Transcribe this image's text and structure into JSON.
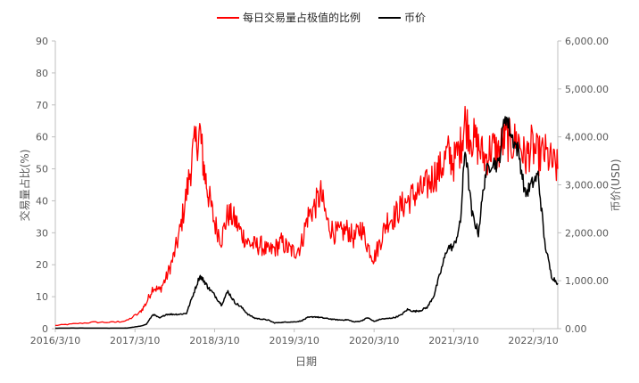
{
  "chart_data": {
    "type": "line",
    "title": "",
    "xlabel": "日期",
    "ylabel_left": "交易量占比(%)",
    "ylabel_right": "币价(USD)",
    "x_range": [
      "2016/3/10",
      "2022/6/30"
    ],
    "x_ticks": [
      "2016/3/10",
      "2017/3/10",
      "2018/3/10",
      "2019/3/10",
      "2020/3/10",
      "2021/3/10",
      "2022/3/10"
    ],
    "ylim_left": [
      0,
      90
    ],
    "yticks_left": [
      "0",
      "10",
      "20",
      "30",
      "40",
      "50",
      "60",
      "70",
      "80",
      "90"
    ],
    "ylim_right": [
      0,
      6000
    ],
    "yticks_right": [
      "0.00",
      "1,000.00",
      "2,000.00",
      "3,000.00",
      "4,000.00",
      "5,000.00",
      "6,000.00"
    ],
    "grid": false,
    "legend_position": "top-center",
    "series": [
      {
        "name": "每日交易量占极值的比例",
        "axis": "left",
        "color": "#ff0000",
        "x": [
          "2016/3/10",
          "2016/6/1",
          "2016/9/1",
          "2016/12/1",
          "2017/2/1",
          "2017/4/1",
          "2017/5/1",
          "2017/6/1",
          "2017/7/1",
          "2017/8/1",
          "2017/9/1",
          "2017/10/1",
          "2017/11/1",
          "2017/12/1",
          "2018/1/1",
          "2018/1/20",
          "2018/2/10",
          "2018/3/10",
          "2018/4/10",
          "2018/5/10",
          "2018/6/10",
          "2018/7/10",
          "2018/8/10",
          "2018/9/10",
          "2018/10/10",
          "2018/11/10",
          "2018/12/10",
          "2019/1/10",
          "2019/2/10",
          "2019/3/10",
          "2019/4/10",
          "2019/5/10",
          "2019/6/10",
          "2019/7/10",
          "2019/8/10",
          "2019/9/10",
          "2019/10/10",
          "2019/11/10",
          "2019/12/10",
          "2020/1/10",
          "2020/2/10",
          "2020/3/10",
          "2020/4/10",
          "2020/5/10",
          "2020/6/10",
          "2020/7/10",
          "2020/8/10",
          "2020/9/10",
          "2020/10/10",
          "2020/11/10",
          "2020/12/10",
          "2021/1/10",
          "2021/2/10",
          "2021/3/10",
          "2021/4/10",
          "2021/5/1",
          "2021/6/1",
          "2021/7/1",
          "2021/8/1",
          "2021/9/1",
          "2021/10/1",
          "2021/11/1",
          "2021/12/1",
          "2022/1/1",
          "2022/2/1",
          "2022/3/1",
          "2022/4/1",
          "2022/5/1",
          "2022/6/1",
          "2022/6/30"
        ],
        "values": [
          1,
          1.5,
          2,
          2,
          2.5,
          5,
          8,
          13,
          12,
          16,
          22,
          30,
          42,
          55,
          62,
          50,
          42,
          33,
          28,
          36,
          34,
          30,
          27,
          26,
          26,
          24,
          25,
          27,
          25,
          24,
          26,
          35,
          38,
          42,
          33,
          30,
          30,
          31,
          28,
          32,
          26,
          22,
          28,
          34,
          35,
          38,
          40,
          42,
          43,
          45,
          48,
          50,
          55,
          52,
          57,
          65,
          60,
          57,
          53,
          57,
          55,
          60,
          58,
          59,
          53,
          57,
          54,
          55,
          52,
          50
        ]
      },
      {
        "name": "币价",
        "axis": "right",
        "color": "#000000",
        "x": [
          "2016/3/10",
          "2016/6/1",
          "2016/9/1",
          "2016/12/1",
          "2017/2/1",
          "2017/4/1",
          "2017/5/1",
          "2017/6/1",
          "2017/7/1",
          "2017/8/1",
          "2017/9/1",
          "2017/10/1",
          "2017/11/1",
          "2017/12/1",
          "2018/1/1",
          "2018/1/20",
          "2018/2/10",
          "2018/3/10",
          "2018/4/10",
          "2018/5/10",
          "2018/6/10",
          "2018/7/10",
          "2018/8/10",
          "2018/9/10",
          "2018/10/10",
          "2018/11/10",
          "2018/12/10",
          "2019/1/10",
          "2019/2/10",
          "2019/3/10",
          "2019/4/10",
          "2019/5/10",
          "2019/6/10",
          "2019/7/10",
          "2019/8/10",
          "2019/9/10",
          "2019/10/10",
          "2019/11/10",
          "2019/12/10",
          "2020/1/10",
          "2020/2/10",
          "2020/3/10",
          "2020/4/10",
          "2020/5/10",
          "2020/6/10",
          "2020/7/10",
          "2020/8/10",
          "2020/9/10",
          "2020/10/10",
          "2020/11/10",
          "2020/12/10",
          "2021/1/10",
          "2021/2/10",
          "2021/3/10",
          "2021/4/10",
          "2021/5/1",
          "2021/6/1",
          "2021/7/1",
          "2021/8/1",
          "2021/9/1",
          "2021/10/1",
          "2021/11/1",
          "2021/12/1",
          "2022/1/1",
          "2022/2/1",
          "2022/3/1",
          "2022/4/1",
          "2022/5/1",
          "2022/6/1",
          "2022/6/30"
        ],
        "values": [
          10,
          12,
          12,
          10,
          12,
          50,
          90,
          300,
          220,
          300,
          300,
          300,
          320,
          700,
          1100,
          1000,
          850,
          700,
          500,
          780,
          550,
          450,
          300,
          220,
          200,
          180,
          120,
          130,
          140,
          140,
          160,
          230,
          250,
          230,
          210,
          190,
          180,
          185,
          140,
          160,
          230,
          150,
          200,
          210,
          230,
          280,
          400,
          360,
          380,
          450,
          700,
          1200,
          1700,
          1700,
          2200,
          3800,
          2400,
          2000,
          3200,
          3500,
          3400,
          4500,
          4000,
          3700,
          2800,
          3000,
          3200,
          1800,
          1100,
          950
        ]
      }
    ]
  }
}
